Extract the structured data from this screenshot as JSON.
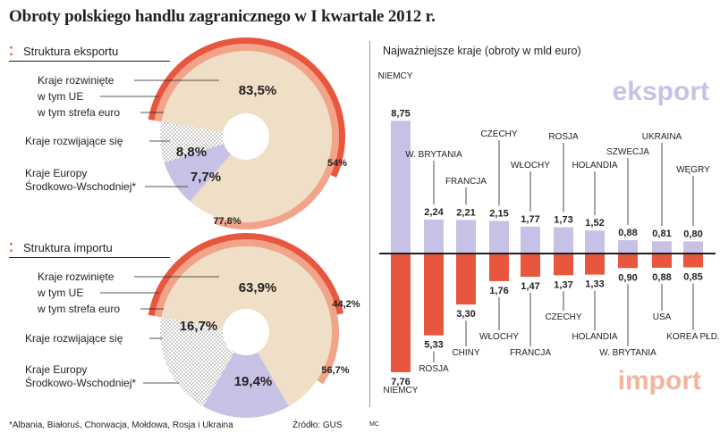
{
  "title": "Obroty polskiego handlu zagranicznego w I kwartale 2012 r.",
  "export_section": {
    "title": "Struktura eksportu",
    "legend": [
      "Kraje rozwinięte",
      "w tym UE",
      "w tym strefa euro",
      "Kraje rozwijające się",
      "Kraje Europy",
      "Środkowo-Wschodniej*"
    ],
    "labels": {
      "developed": "83,5%",
      "developing": "8,8%",
      "cee": "7,7%",
      "eu": "77,8%",
      "euro": "54%"
    }
  },
  "import_section": {
    "title": "Struktura importu",
    "legend": [
      "Kraje rozwinięte",
      "w tym UE",
      "w tym strefa euro",
      "Kraje rozwijające się",
      "Kraje Europy",
      "Środkowo-Wschodniej*"
    ],
    "labels": {
      "developed": "63,9%",
      "developing": "16,7%",
      "cee": "19,4%",
      "eu": "56,7%",
      "euro": "44,2%"
    }
  },
  "bar_section": {
    "title": "Najważniejsze kraje (obroty w mld euro)",
    "export_word": "eksport",
    "import_word": "import"
  },
  "footnote": "*Albania, Białoruś, Chorwacja, Mołdowa, Rosja i Ukraina",
  "source": "Źródło: GUS",
  "credit": "MC",
  "colors": {
    "developed": "#efdfc6",
    "developing": "#c7c1e6",
    "cee": "#d8d2c8",
    "eu": "#f2a48a",
    "euro": "#e8563d",
    "export": "#c7c1e6",
    "import": "#e8563d",
    "axis": "#231f20"
  },
  "chart_data": [
    {
      "type": "pie",
      "title": "Struktura eksportu",
      "categories": [
        "Kraje rozwinięte",
        "Kraje rozwijające się",
        "Kraje Europy Środkowo-Wschodniej*"
      ],
      "values": [
        83.5,
        8.8,
        7.7
      ],
      "value_labels": [
        "83,5%",
        "8,8%",
        "7,7%"
      ],
      "subsets": [
        {
          "name": "w tym UE",
          "value": 77.8,
          "label": "77,8%"
        },
        {
          "name": "w tym strefa euro",
          "value": 54,
          "label": "54%"
        }
      ]
    },
    {
      "type": "pie",
      "title": "Struktura importu",
      "categories": [
        "Kraje rozwinięte",
        "Kraje rozwijające się",
        "Kraje Europy Środkowo-Wschodniej*"
      ],
      "values": [
        63.9,
        16.7,
        19.4
      ],
      "value_labels": [
        "63,9%",
        "16,7%",
        "19,4%"
      ],
      "subsets": [
        {
          "name": "w tym UE",
          "value": 56.7,
          "label": "56,7%"
        },
        {
          "name": "w tym strefa euro",
          "value": 44.2,
          "label": "44,2%"
        }
      ]
    },
    {
      "type": "bar",
      "title": "Najważniejsze kraje (obroty w mld euro)",
      "series": [
        {
          "name": "eksport",
          "categories": [
            "NIEMCY",
            "W. BRYTANIA",
            "FRANCJA",
            "CZECHY",
            "WŁOCHY",
            "ROSJA",
            "HOLANDIA",
            "SZWECJA",
            "UKRAINA",
            "WĘGRY"
          ],
          "values": [
            8.75,
            2.24,
            2.21,
            2.15,
            1.77,
            1.73,
            1.52,
            0.88,
            0.81,
            0.8
          ],
          "value_labels": [
            "8,75",
            "2,24",
            "2,21",
            "2,15",
            "1,77",
            "1,73",
            "1,52",
            "0,88",
            "0,81",
            "0,80"
          ]
        },
        {
          "name": "import",
          "categories": [
            "NIEMCY",
            "ROSJA",
            "CHINY",
            "WŁOCHY",
            "FRANCJA",
            "CZECHY",
            "HOLANDIA",
            "W. BRYTANIA",
            "USA",
            "KOREA PŁD."
          ],
          "values": [
            7.76,
            5.33,
            3.3,
            1.76,
            1.47,
            1.37,
            1.33,
            0.9,
            0.88,
            0.85
          ],
          "value_labels": [
            "7,76",
            "5,33",
            "3,30",
            "1,76",
            "1,47",
            "1,37",
            "1,33",
            "0,90",
            "0,88",
            "0,85"
          ]
        }
      ],
      "ylim": [
        -8,
        9
      ]
    }
  ]
}
